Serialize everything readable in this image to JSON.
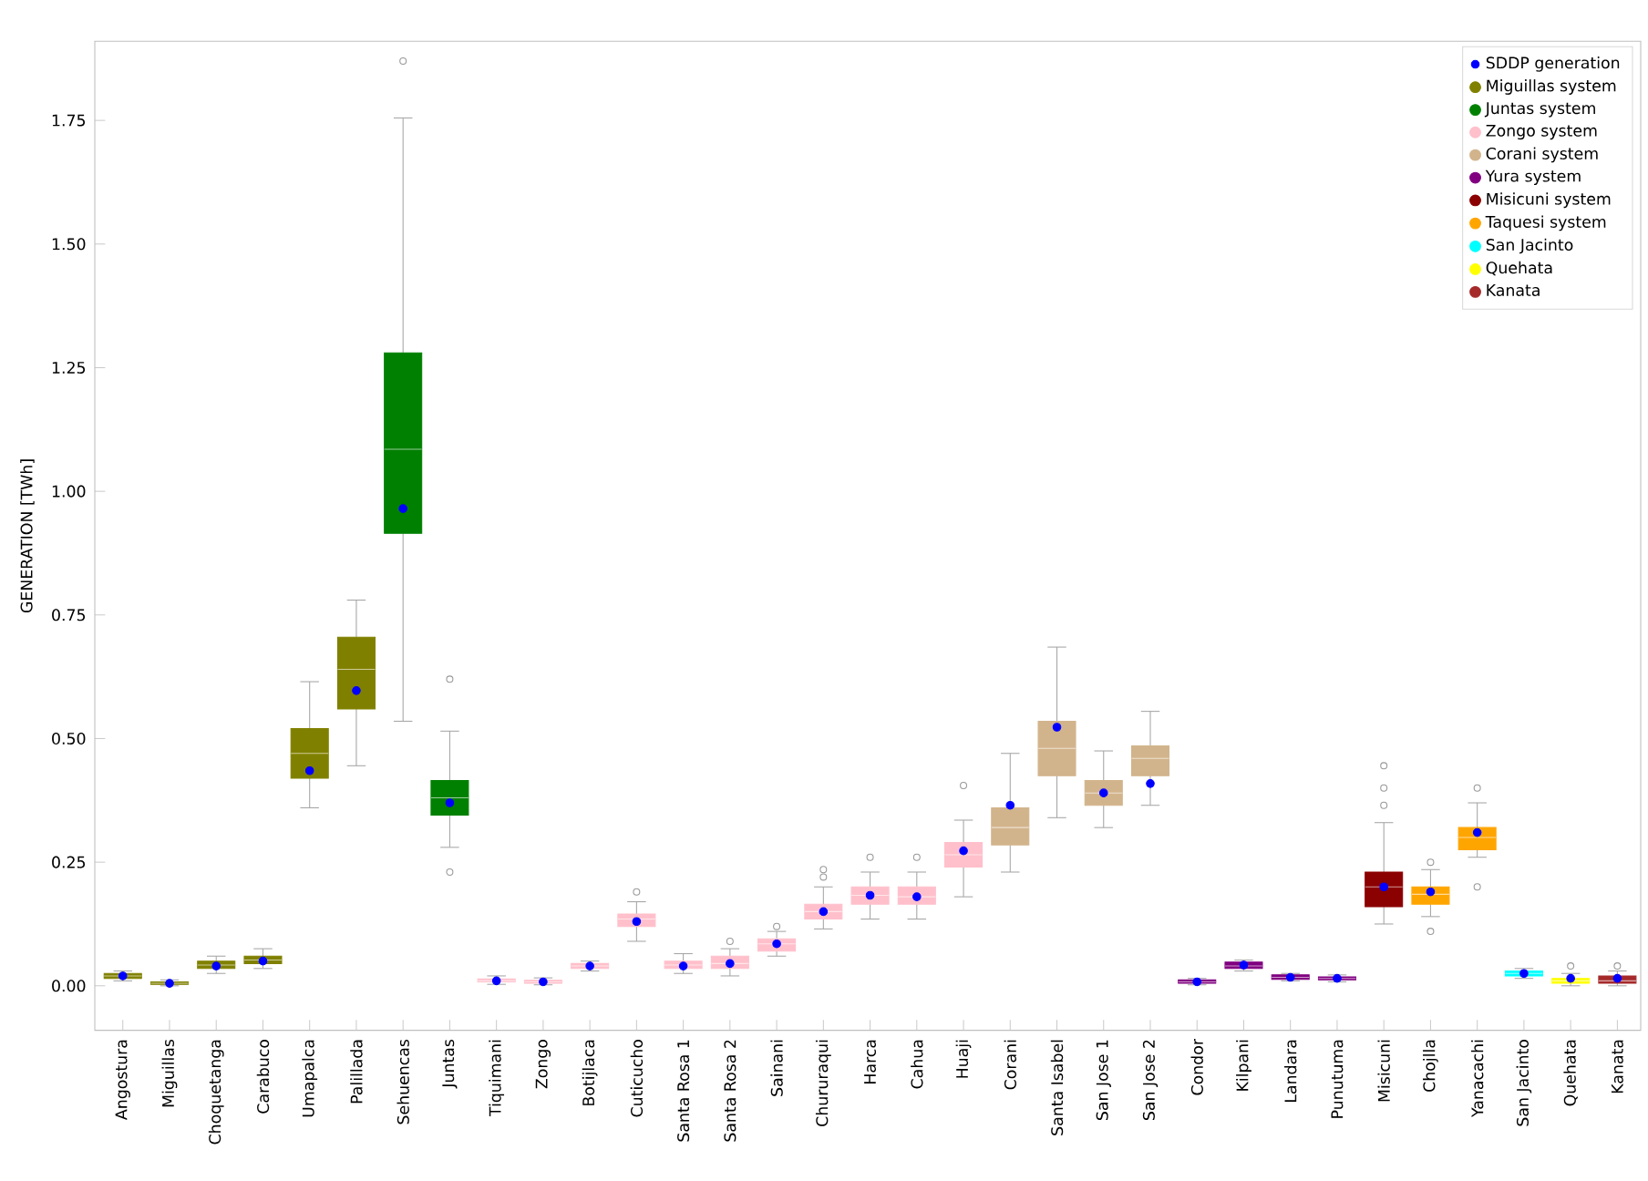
{
  "chart_data": {
    "type": "box",
    "ylabel": "GENERATION [TWh]",
    "categories": [
      "Angostura",
      "Miguillas",
      "Choquetanga",
      "Carabuco",
      "Umapalca",
      "Palillada",
      "Sehuencas",
      "Juntas",
      "Tiquimani",
      "Zongo",
      "Botijlaca",
      "Cuticucho",
      "Santa Rosa 1",
      "Santa Rosa 2",
      "Sainani",
      "Chururaqui",
      "Harca",
      "Cahua",
      "Huaji",
      "Corani",
      "Santa Isabel",
      "San Jose 1",
      "San Jose 2",
      "Condor",
      "Kilpani",
      "Landara",
      "Punutuma",
      "Misicuni",
      "Chojlla",
      "Yanacachi",
      "San Jacinto",
      "Quehata",
      "Kanata"
    ],
    "ylim": [
      -0.09,
      1.91
    ],
    "yticks": [
      {
        "value": 0,
        "label": "0.00"
      },
      {
        "value": 0.25,
        "label": "0.25"
      },
      {
        "value": 0.5,
        "label": "0.50"
      },
      {
        "value": 0.75,
        "label": "0.75"
      },
      {
        "value": 1,
        "label": "1.00"
      },
      {
        "value": 1.25,
        "label": "1.25"
      },
      {
        "value": 1.5,
        "label": "1.50"
      },
      {
        "value": 1.75,
        "label": "1.75"
      }
    ],
    "legend": "top right",
    "grid": false,
    "marker": "circle",
    "series": [
      {
        "name": "SDDP generation",
        "type": "scatter",
        "color": "#0000ff",
        "values": [
          0.02,
          0.005,
          0.04,
          0.05,
          0.435,
          0.597,
          0.965,
          0.37,
          0.01,
          0.008,
          0.04,
          0.13,
          0.04,
          0.045,
          0.085,
          0.15,
          0.183,
          0.18,
          0.273,
          0.365,
          0.523,
          0.39,
          0.409,
          0.008,
          0.042,
          0.017,
          0.015,
          0.2,
          0.19,
          0.31,
          0.025,
          0.015,
          0.015
        ]
      },
      {
        "name": "Miguillas system",
        "color": "#808000",
        "boxes": [
          {
            "low": 0.01,
            "q1": 0.015,
            "median": 0.02,
            "q3": 0.025,
            "high": 0.03
          },
          {
            "low": 0,
            "q1": 0.003,
            "median": 0.005,
            "q3": 0.008,
            "high": 0.012
          },
          {
            "low": 0.025,
            "q1": 0.035,
            "median": 0.042,
            "q3": 0.05,
            "high": 0.06
          },
          {
            "low": 0.035,
            "q1": 0.045,
            "median": 0.052,
            "q3": 0.06,
            "high": 0.075
          },
          {
            "low": 0.36,
            "q1": 0.42,
            "median": 0.47,
            "q3": 0.52,
            "high": 0.615
          },
          {
            "low": 0.445,
            "q1": 0.56,
            "median": 0.64,
            "q3": 0.705,
            "high": 0.78
          },
          null,
          null,
          null,
          null,
          null,
          null,
          null,
          null,
          null,
          null,
          null,
          null,
          null,
          null,
          null,
          null,
          null,
          null,
          null,
          null,
          null,
          null,
          null,
          null,
          null,
          null,
          null
        ]
      },
      {
        "name": "Juntas system",
        "color": "#008000",
        "boxes": [
          null,
          null,
          null,
          null,
          null,
          null,
          {
            "low": 0.535,
            "q1": 0.915,
            "median": 1.085,
            "q3": 1.28,
            "high": 1.755,
            "outliers": [
              1.87
            ]
          },
          {
            "low": 0.28,
            "q1": 0.345,
            "median": 0.38,
            "q3": 0.415,
            "high": 0.515,
            "outliers": [
              0.23,
              0.62
            ]
          },
          null,
          null,
          null,
          null,
          null,
          null,
          null,
          null,
          null,
          null,
          null,
          null,
          null,
          null,
          null,
          null,
          null,
          null,
          null,
          null,
          null,
          null,
          null,
          null,
          null
        ]
      },
      {
        "name": "Zongo system",
        "color": "#ffc0cb",
        "boxes": [
          null,
          null,
          null,
          null,
          null,
          null,
          null,
          null,
          {
            "low": 0.003,
            "q1": 0.008,
            "median": 0.01,
            "q3": 0.014,
            "high": 0.02
          },
          {
            "low": 0.002,
            "q1": 0.005,
            "median": 0.008,
            "q3": 0.011,
            "high": 0.016
          },
          {
            "low": 0.03,
            "q1": 0.035,
            "median": 0.04,
            "q3": 0.045,
            "high": 0.05
          },
          {
            "low": 0.09,
            "q1": 0.12,
            "median": 0.135,
            "q3": 0.145,
            "high": 0.17,
            "outliers": [
              0.19
            ]
          },
          {
            "low": 0.025,
            "q1": 0.035,
            "median": 0.042,
            "q3": 0.05,
            "high": 0.065
          },
          {
            "low": 0.02,
            "q1": 0.035,
            "median": 0.045,
            "q3": 0.06,
            "high": 0.075,
            "outliers": [
              0.09
            ]
          },
          {
            "low": 0.06,
            "q1": 0.07,
            "median": 0.085,
            "q3": 0.095,
            "high": 0.11,
            "outliers": [
              0.12
            ]
          },
          {
            "low": 0.115,
            "q1": 0.135,
            "median": 0.15,
            "q3": 0.165,
            "high": 0.2,
            "outliers": [
              0.22,
              0.235
            ]
          },
          {
            "low": 0.135,
            "q1": 0.165,
            "median": 0.183,
            "q3": 0.2,
            "high": 0.23,
            "outliers": [
              0.26
            ]
          },
          {
            "low": 0.135,
            "q1": 0.165,
            "median": 0.18,
            "q3": 0.2,
            "high": 0.23,
            "outliers": [
              0.26
            ]
          },
          {
            "low": 0.18,
            "q1": 0.24,
            "median": 0.265,
            "q3": 0.29,
            "high": 0.335,
            "outliers": [
              0.405
            ]
          },
          null,
          null,
          null,
          null,
          null,
          null,
          null,
          null,
          null,
          null,
          null,
          null,
          null,
          null
        ]
      },
      {
        "name": "Corani system",
        "color": "#d2b48c",
        "boxes": [
          null,
          null,
          null,
          null,
          null,
          null,
          null,
          null,
          null,
          null,
          null,
          null,
          null,
          null,
          null,
          null,
          null,
          null,
          null,
          {
            "low": 0.23,
            "q1": 0.285,
            "median": 0.32,
            "q3": 0.36,
            "high": 0.47
          },
          {
            "low": 0.34,
            "q1": 0.425,
            "median": 0.48,
            "q3": 0.535,
            "high": 0.685
          },
          {
            "low": 0.32,
            "q1": 0.365,
            "median": 0.39,
            "q3": 0.415,
            "high": 0.475
          },
          {
            "low": 0.365,
            "q1": 0.425,
            "median": 0.46,
            "q3": 0.485,
            "high": 0.555
          },
          null,
          null,
          null,
          null,
          null,
          null,
          null,
          null,
          null,
          null
        ]
      },
      {
        "name": "Yura system",
        "color": "#800080",
        "boxes": [
          null,
          null,
          null,
          null,
          null,
          null,
          null,
          null,
          null,
          null,
          null,
          null,
          null,
          null,
          null,
          null,
          null,
          null,
          null,
          null,
          null,
          null,
          null,
          {
            "low": 0.002,
            "q1": 0.005,
            "median": 0.008,
            "q3": 0.012,
            "high": 0.015
          },
          {
            "low": 0.03,
            "q1": 0.035,
            "median": 0.04,
            "q3": 0.048,
            "high": 0.052
          },
          {
            "low": 0.01,
            "q1": 0.013,
            "median": 0.017,
            "q3": 0.022,
            "high": 0.025
          },
          {
            "low": 0.008,
            "q1": 0.012,
            "median": 0.015,
            "q3": 0.018,
            "high": 0.022
          },
          null,
          null,
          null,
          null,
          null,
          null
        ]
      },
      {
        "name": "Misicuni system",
        "color": "#8b0000",
        "boxes": [
          null,
          null,
          null,
          null,
          null,
          null,
          null,
          null,
          null,
          null,
          null,
          null,
          null,
          null,
          null,
          null,
          null,
          null,
          null,
          null,
          null,
          null,
          null,
          null,
          null,
          null,
          null,
          {
            "low": 0.125,
            "q1": 0.16,
            "median": 0.2,
            "q3": 0.23,
            "high": 0.33,
            "outliers": [
              0.365,
              0.4,
              0.445
            ]
          },
          null,
          null,
          null,
          null,
          null
        ]
      },
      {
        "name": "Taquesi system",
        "color": "#ffa500",
        "boxes": [
          null,
          null,
          null,
          null,
          null,
          null,
          null,
          null,
          null,
          null,
          null,
          null,
          null,
          null,
          null,
          null,
          null,
          null,
          null,
          null,
          null,
          null,
          null,
          null,
          null,
          null,
          null,
          null,
          {
            "low": 0.14,
            "q1": 0.165,
            "median": 0.185,
            "q3": 0.2,
            "high": 0.235,
            "outliers": [
              0.11,
              0.25
            ]
          },
          {
            "low": 0.26,
            "q1": 0.275,
            "median": 0.3,
            "q3": 0.32,
            "high": 0.37,
            "outliers": [
              0.2,
              0.4
            ]
          },
          null,
          null,
          null
        ]
      },
      {
        "name": "San Jacinto",
        "color": "#00ffff",
        "boxes": [
          null,
          null,
          null,
          null,
          null,
          null,
          null,
          null,
          null,
          null,
          null,
          null,
          null,
          null,
          null,
          null,
          null,
          null,
          null,
          null,
          null,
          null,
          null,
          null,
          null,
          null,
          null,
          null,
          null,
          null,
          {
            "low": 0.015,
            "q1": 0.02,
            "median": 0.025,
            "q3": 0.03,
            "high": 0.035
          },
          null,
          null
        ]
      },
      {
        "name": "Quehata",
        "color": "#ffff00",
        "boxes": [
          null,
          null,
          null,
          null,
          null,
          null,
          null,
          null,
          null,
          null,
          null,
          null,
          null,
          null,
          null,
          null,
          null,
          null,
          null,
          null,
          null,
          null,
          null,
          null,
          null,
          null,
          null,
          null,
          null,
          null,
          null,
          {
            "low": 0,
            "q1": 0.005,
            "median": 0.01,
            "q3": 0.015,
            "high": 0.025,
            "outliers": [
              0.04
            ]
          },
          null
        ]
      },
      {
        "name": "Kanata",
        "color": "#a52a2a",
        "boxes": [
          null,
          null,
          null,
          null,
          null,
          null,
          null,
          null,
          null,
          null,
          null,
          null,
          null,
          null,
          null,
          null,
          null,
          null,
          null,
          null,
          null,
          null,
          null,
          null,
          null,
          null,
          null,
          null,
          null,
          null,
          null,
          null,
          {
            "low": 0,
            "q1": 0.005,
            "median": 0.01,
            "q3": 0.02,
            "high": 0.03,
            "outliers": [
              0.04
            ]
          }
        ]
      }
    ]
  }
}
